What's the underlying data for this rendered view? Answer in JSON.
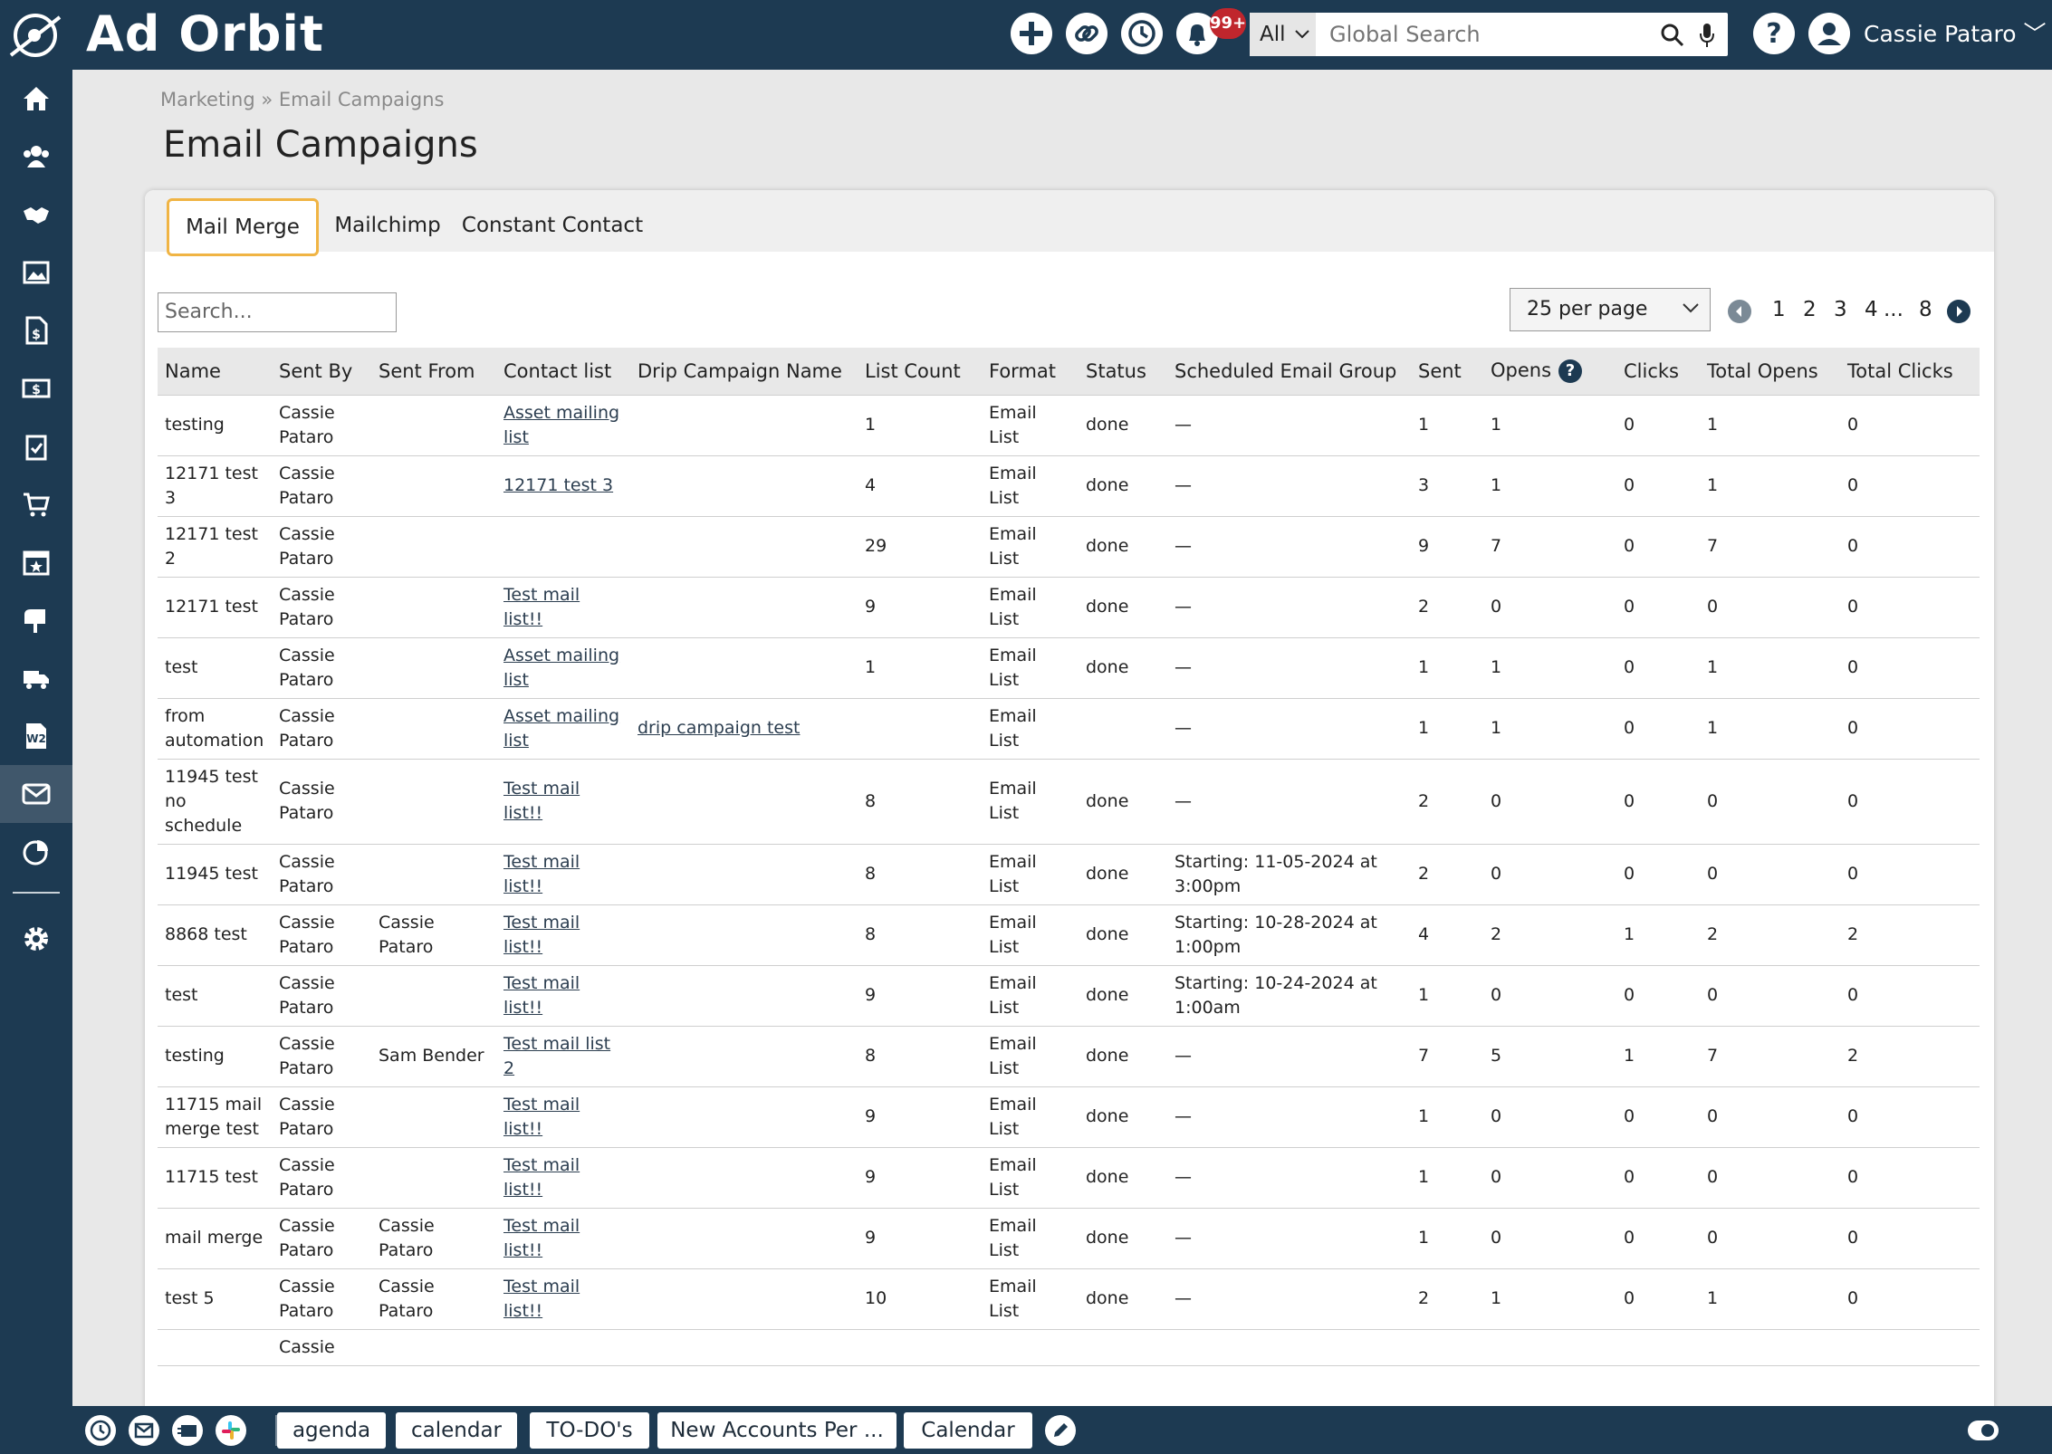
{
  "app": {
    "logo_text": "Ad Orbit",
    "user_name": "Cassie Pataro ﹀",
    "notification_count": "99+"
  },
  "search": {
    "scope": "All",
    "placeholder": "Global Search"
  },
  "breadcrumb": {
    "parent": "Marketing",
    "separator": "»",
    "current": "Email Campaigns"
  },
  "page": {
    "title": "Email Campaigns"
  },
  "tabs": [
    {
      "label": "Mail Merge"
    },
    {
      "label": "Mailchimp"
    },
    {
      "label": "Constant Contact"
    }
  ],
  "table_search": {
    "placeholder": "Search..."
  },
  "per_page": {
    "selected": "25 per page"
  },
  "pagination": {
    "pages": [
      "1",
      "2",
      "3",
      "4"
    ],
    "ellipsis": "...",
    "last": "8"
  },
  "table": {
    "columns": [
      "Name",
      "Sent By",
      "Sent From",
      "Contact list",
      "Drip Campaign Name",
      "List Count",
      "Format",
      "Status",
      "Scheduled Email Group",
      "Sent",
      "Opens",
      "Clicks",
      "Total Opens",
      "Total Clicks"
    ],
    "rows": [
      {
        "name": "testing",
        "sent_by": "Cassie Pataro",
        "sent_from": "",
        "contact_list": "Asset mailing list",
        "drip": "",
        "list_count": "1",
        "format": "Email List",
        "status": "done",
        "scheduled": "—",
        "sent": "1",
        "opens": "1",
        "clicks": "0",
        "total_opens": "1",
        "total_clicks": "0"
      },
      {
        "name": "12171 test 3",
        "sent_by": "Cassie Pataro",
        "sent_from": "",
        "contact_list": "12171 test 3",
        "drip": "",
        "list_count": "4",
        "format": "Email List",
        "status": "done",
        "scheduled": "—",
        "sent": "3",
        "opens": "1",
        "clicks": "0",
        "total_opens": "1",
        "total_clicks": "0"
      },
      {
        "name": "12171 test 2",
        "sent_by": "Cassie Pataro",
        "sent_from": "",
        "contact_list": "",
        "drip": "",
        "list_count": "29",
        "format": "Email List",
        "status": "done",
        "scheduled": "—",
        "sent": "9",
        "opens": "7",
        "clicks": "0",
        "total_opens": "7",
        "total_clicks": "0"
      },
      {
        "name": "12171 test",
        "sent_by": "Cassie Pataro",
        "sent_from": "",
        "contact_list": "Test mail list!!",
        "drip": "",
        "list_count": "9",
        "format": "Email List",
        "status": "done",
        "scheduled": "—",
        "sent": "2",
        "opens": "0",
        "clicks": "0",
        "total_opens": "0",
        "total_clicks": "0"
      },
      {
        "name": "test",
        "sent_by": "Cassie Pataro",
        "sent_from": "",
        "contact_list": "Asset mailing list",
        "drip": "",
        "list_count": "1",
        "format": "Email List",
        "status": "done",
        "scheduled": "—",
        "sent": "1",
        "opens": "1",
        "clicks": "0",
        "total_opens": "1",
        "total_clicks": "0"
      },
      {
        "name": "from automation",
        "sent_by": "Cassie Pataro",
        "sent_from": "",
        "contact_list": "Asset mailing list",
        "drip": "drip campaign test",
        "list_count": "",
        "format": "Email List",
        "status": "",
        "scheduled": "—",
        "sent": "1",
        "opens": "1",
        "clicks": "0",
        "total_opens": "1",
        "total_clicks": "0"
      },
      {
        "name": "11945 test no schedule",
        "sent_by": "Cassie Pataro",
        "sent_from": "",
        "contact_list": "Test mail list!!",
        "drip": "",
        "list_count": "8",
        "format": "Email List",
        "status": "done",
        "scheduled": "—",
        "sent": "2",
        "opens": "0",
        "clicks": "0",
        "total_opens": "0",
        "total_clicks": "0"
      },
      {
        "name": "11945 test",
        "sent_by": "Cassie Pataro",
        "sent_from": "",
        "contact_list": "Test mail list!!",
        "drip": "",
        "list_count": "8",
        "format": "Email List",
        "status": "done",
        "scheduled": "Starting: 11-05-2024 at 3:00pm",
        "sent": "2",
        "opens": "0",
        "clicks": "0",
        "total_opens": "0",
        "total_clicks": "0"
      },
      {
        "name": "8868 test",
        "sent_by": "Cassie Pataro",
        "sent_from": "Cassie Pataro",
        "contact_list": "Test mail list!!",
        "drip": "",
        "list_count": "8",
        "format": "Email List",
        "status": "done",
        "scheduled": "Starting: 10-28-2024 at 1:00pm",
        "sent": "4",
        "opens": "2",
        "clicks": "1",
        "total_opens": "2",
        "total_clicks": "2"
      },
      {
        "name": "test",
        "sent_by": "Cassie Pataro",
        "sent_from": "",
        "contact_list": "Test mail list!!",
        "drip": "",
        "list_count": "9",
        "format": "Email List",
        "status": "done",
        "scheduled": "Starting: 10-24-2024 at 1:00am",
        "sent": "1",
        "opens": "0",
        "clicks": "0",
        "total_opens": "0",
        "total_clicks": "0"
      },
      {
        "name": "testing",
        "sent_by": "Cassie Pataro",
        "sent_from": "Sam Bender",
        "contact_list": "Test mail list 2",
        "drip": "",
        "list_count": "8",
        "format": "Email List",
        "status": "done",
        "scheduled": "—",
        "sent": "7",
        "opens": "5",
        "clicks": "1",
        "total_opens": "7",
        "total_clicks": "2"
      },
      {
        "name": "11715 mail merge test",
        "sent_by": "Cassie Pataro",
        "sent_from": "",
        "contact_list": "Test mail list!!",
        "drip": "",
        "list_count": "9",
        "format": "Email List",
        "status": "done",
        "scheduled": "—",
        "sent": "1",
        "opens": "0",
        "clicks": "0",
        "total_opens": "0",
        "total_clicks": "0"
      },
      {
        "name": "11715 test",
        "sent_by": "Cassie Pataro",
        "sent_from": "",
        "contact_list": "Test mail list!!",
        "drip": "",
        "list_count": "9",
        "format": "Email List",
        "status": "done",
        "scheduled": "—",
        "sent": "1",
        "opens": "0",
        "clicks": "0",
        "total_opens": "0",
        "total_clicks": "0"
      },
      {
        "name": "mail merge",
        "sent_by": "Cassie Pataro",
        "sent_from": "Cassie Pataro",
        "contact_list": "Test mail list!!",
        "drip": "",
        "list_count": "9",
        "format": "Email List",
        "status": "done",
        "scheduled": "—",
        "sent": "1",
        "opens": "0",
        "clicks": "0",
        "total_opens": "0",
        "total_clicks": "0"
      },
      {
        "name": "test 5",
        "sent_by": "Cassie Pataro",
        "sent_from": "Cassie Pataro",
        "contact_list": "Test mail list!!",
        "drip": "",
        "list_count": "10",
        "format": "Email List",
        "status": "done",
        "scheduled": "—",
        "sent": "2",
        "opens": "1",
        "clicks": "0",
        "total_opens": "1",
        "total_clicks": "0"
      },
      {
        "name": "",
        "sent_by": "Cassie",
        "sent_from": "",
        "contact_list": "",
        "drip": "",
        "list_count": "",
        "format": "",
        "status": "",
        "scheduled": "",
        "sent": "",
        "opens": "",
        "clicks": "",
        "total_opens": "",
        "total_clicks": ""
      }
    ]
  },
  "bottom_tabs": [
    {
      "label": "agenda"
    },
    {
      "label": "calendar"
    },
    {
      "label": "TO-DO's"
    },
    {
      "label": "New Accounts Per ..."
    },
    {
      "label": "Calendar"
    }
  ],
  "colors": {
    "nav": "#1d3a52",
    "active_tab_border": "#f0b444",
    "badge": "#c0262d"
  }
}
